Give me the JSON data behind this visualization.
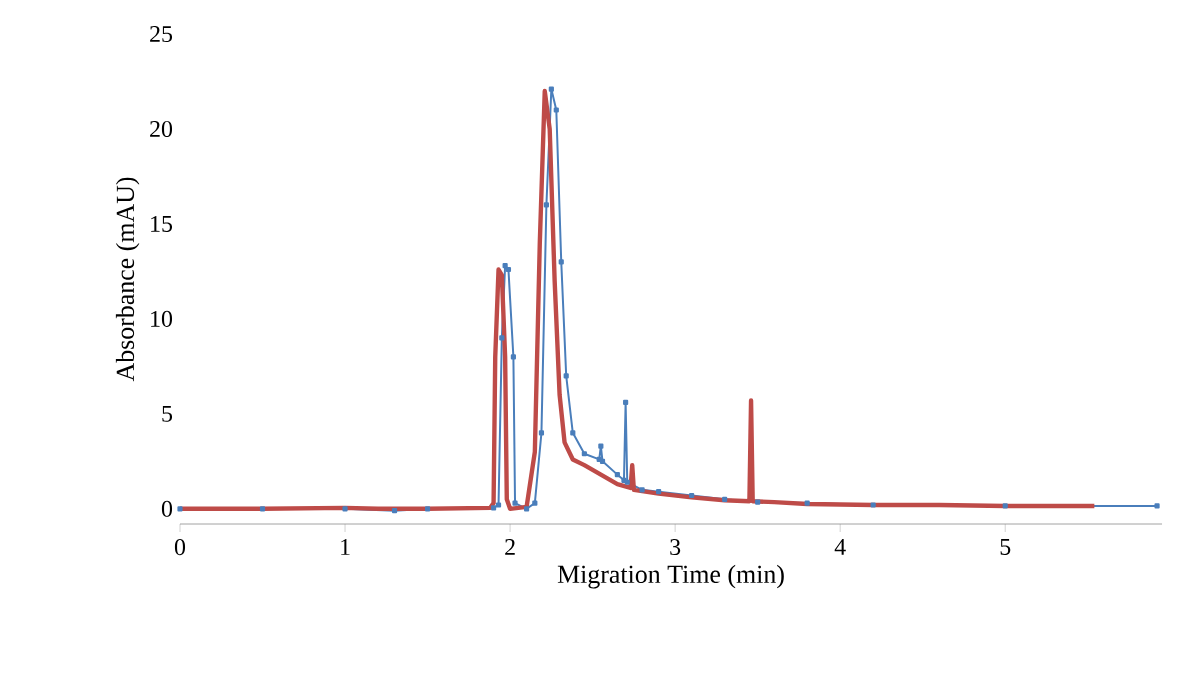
{
  "chart_data": {
    "type": "line",
    "xlabel": "Migration Time (min)",
    "ylabel": "Absorbance (mAU)",
    "xlim": [
      0,
      5.95
    ],
    "xticks": [
      0,
      1,
      2,
      3,
      4,
      5
    ],
    "ylim": [
      -0.8,
      25
    ],
    "yticks": [
      0,
      5,
      10,
      15,
      20,
      25
    ],
    "series": [
      {
        "color": "#4a7ebb",
        "marker": "square",
        "x": [
          0,
          0.5,
          1,
          1.3,
          1.5,
          1.9,
          1.93,
          1.95,
          1.97,
          1.99,
          2.02,
          2.03,
          2.1,
          2.15,
          2.19,
          2.22,
          2.25,
          2.28,
          2.31,
          2.34,
          2.38,
          2.45,
          2.54,
          2.55,
          2.56,
          2.65,
          2.69,
          2.7,
          2.71,
          2.8,
          2.9,
          3.1,
          3.3,
          3.5,
          3.8,
          4.2,
          5,
          5.92
        ],
        "values": [
          0,
          0,
          0,
          -0.1,
          0,
          0.05,
          0.2,
          9,
          12.8,
          12.6,
          8,
          0.3,
          0,
          0.3,
          4,
          16,
          22.1,
          21,
          13,
          7,
          4,
          2.9,
          2.6,
          3.3,
          2.5,
          1.8,
          1.5,
          5.6,
          1.4,
          1.0,
          0.9,
          0.7,
          0.5,
          0.35,
          0.3,
          0.2,
          0.15,
          0.15
        ]
      },
      {
        "color": "#be4b48",
        "marker": "none",
        "x": [
          0,
          0.5,
          1,
          1.2,
          1.5,
          1.88,
          1.9,
          1.91,
          1.93,
          1.95,
          1.97,
          1.98,
          2.0,
          2.1,
          2.15,
          2.18,
          2.21,
          2.24,
          2.27,
          2.3,
          2.33,
          2.38,
          2.45,
          2.55,
          2.65,
          2.73,
          2.74,
          2.75,
          2.9,
          3.1,
          3.3,
          3.45,
          3.46,
          3.47,
          3.6,
          3.8,
          4.2,
          4.6,
          5.0,
          5.54
        ],
        "values": [
          0,
          0,
          0.05,
          0,
          0,
          0.05,
          0.3,
          8,
          12.6,
          12.3,
          8,
          0.5,
          0,
          0.1,
          3,
          14,
          22.0,
          20,
          12,
          6,
          3.5,
          2.6,
          2.3,
          1.8,
          1.3,
          1.1,
          2.3,
          1.0,
          0.8,
          0.6,
          0.45,
          0.4,
          5.7,
          0.4,
          0.35,
          0.25,
          0.2,
          0.2,
          0.15,
          0.15
        ]
      }
    ]
  }
}
